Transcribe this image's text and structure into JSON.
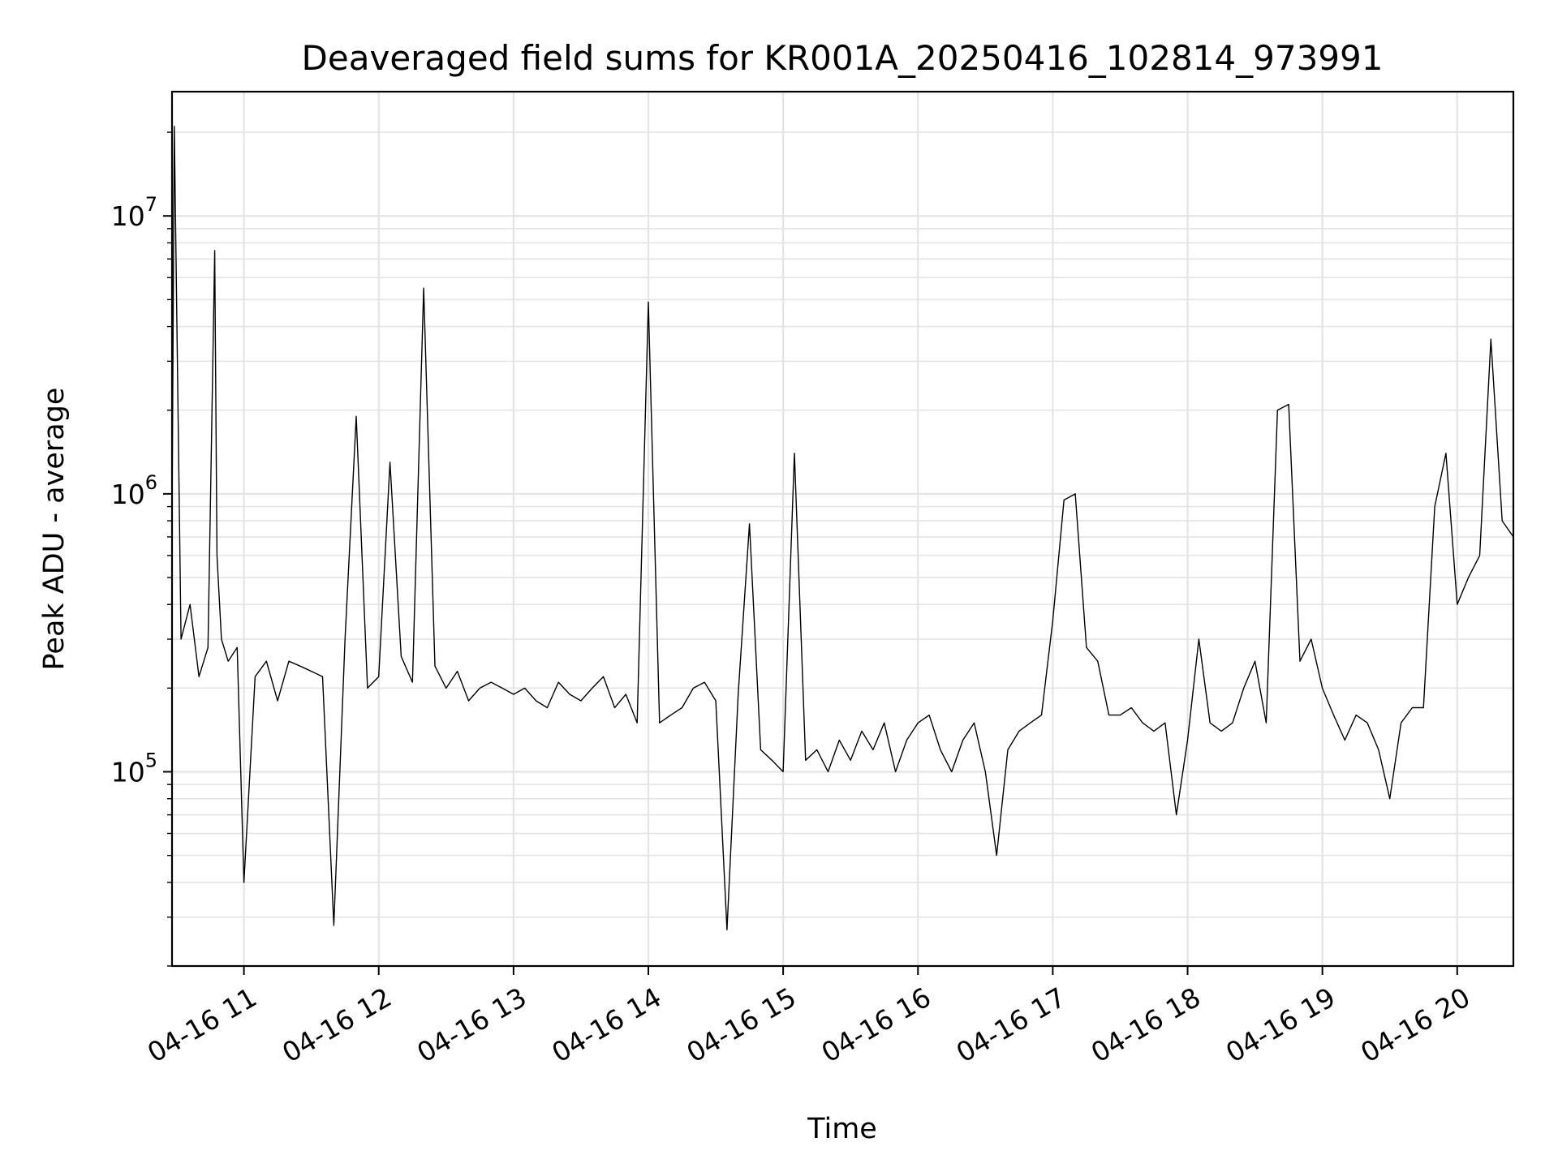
{
  "chart_data": {
    "type": "line",
    "title": "Deaveraged field sums for KR001A_20250416_102814_973991",
    "xlabel": "Time",
    "ylabel": "Peak ADU - average",
    "yscale": "log",
    "grid": "on",
    "legend": "none",
    "xlim": [
      "2025-04-16 10:28",
      "2025-04-16 20:25"
    ],
    "ylim": [
      20000,
      28000000
    ],
    "x_ticks": [
      {
        "t": "2025-04-16 11:00",
        "label": "04-16 11"
      },
      {
        "t": "2025-04-16 12:00",
        "label": "04-16 12"
      },
      {
        "t": "2025-04-16 13:00",
        "label": "04-16 13"
      },
      {
        "t": "2025-04-16 14:00",
        "label": "04-16 14"
      },
      {
        "t": "2025-04-16 15:00",
        "label": "04-16 15"
      },
      {
        "t": "2025-04-16 16:00",
        "label": "04-16 16"
      },
      {
        "t": "2025-04-16 17:00",
        "label": "04-16 17"
      },
      {
        "t": "2025-04-16 18:00",
        "label": "04-16 18"
      },
      {
        "t": "2025-04-16 19:00",
        "label": "04-16 19"
      },
      {
        "t": "2025-04-16 20:00",
        "label": "04-16 20"
      }
    ],
    "y_ticks": [
      {
        "v": 100000,
        "base": "10",
        "exp": "5"
      },
      {
        "v": 1000000,
        "base": "10",
        "exp": "6"
      },
      {
        "v": 10000000,
        "base": "10",
        "exp": "7"
      }
    ],
    "series": [
      {
        "color": "#000000",
        "x": [
          "2025-04-16 10:28",
          "2025-04-16 10:29",
          "2025-04-16 10:32",
          "2025-04-16 10:36",
          "2025-04-16 10:40",
          "2025-04-16 10:44",
          "2025-04-16 10:47",
          "2025-04-16 10:48",
          "2025-04-16 10:50",
          "2025-04-16 10:53",
          "2025-04-16 10:57",
          "2025-04-16 11:00",
          "2025-04-16 11:05",
          "2025-04-16 11:10",
          "2025-04-16 11:15",
          "2025-04-16 11:20",
          "2025-04-16 11:25",
          "2025-04-16 11:30",
          "2025-04-16 11:35",
          "2025-04-16 11:40",
          "2025-04-16 11:45",
          "2025-04-16 11:50",
          "2025-04-16 11:55",
          "2025-04-16 12:00",
          "2025-04-16 12:05",
          "2025-04-16 12:10",
          "2025-04-16 12:15",
          "2025-04-16 12:20",
          "2025-04-16 12:25",
          "2025-04-16 12:30",
          "2025-04-16 12:35",
          "2025-04-16 12:40",
          "2025-04-16 12:45",
          "2025-04-16 12:50",
          "2025-04-16 12:55",
          "2025-04-16 13:00",
          "2025-04-16 13:05",
          "2025-04-16 13:10",
          "2025-04-16 13:15",
          "2025-04-16 13:20",
          "2025-04-16 13:25",
          "2025-04-16 13:30",
          "2025-04-16 13:35",
          "2025-04-16 13:40",
          "2025-04-16 13:45",
          "2025-04-16 13:50",
          "2025-04-16 13:55",
          "2025-04-16 14:00",
          "2025-04-16 14:05",
          "2025-04-16 14:10",
          "2025-04-16 14:15",
          "2025-04-16 14:20",
          "2025-04-16 14:25",
          "2025-04-16 14:30",
          "2025-04-16 14:35",
          "2025-04-16 14:40",
          "2025-04-16 14:45",
          "2025-04-16 14:50",
          "2025-04-16 14:55",
          "2025-04-16 15:00",
          "2025-04-16 15:05",
          "2025-04-16 15:10",
          "2025-04-16 15:15",
          "2025-04-16 15:20",
          "2025-04-16 15:25",
          "2025-04-16 15:30",
          "2025-04-16 15:35",
          "2025-04-16 15:40",
          "2025-04-16 15:45",
          "2025-04-16 15:50",
          "2025-04-16 15:55",
          "2025-04-16 16:00",
          "2025-04-16 16:05",
          "2025-04-16 16:10",
          "2025-04-16 16:15",
          "2025-04-16 16:20",
          "2025-04-16 16:25",
          "2025-04-16 16:30",
          "2025-04-16 16:35",
          "2025-04-16 16:40",
          "2025-04-16 16:45",
          "2025-04-16 16:50",
          "2025-04-16 16:55",
          "2025-04-16 17:00",
          "2025-04-16 17:05",
          "2025-04-16 17:10",
          "2025-04-16 17:15",
          "2025-04-16 17:20",
          "2025-04-16 17:25",
          "2025-04-16 17:30",
          "2025-04-16 17:35",
          "2025-04-16 17:40",
          "2025-04-16 17:45",
          "2025-04-16 17:50",
          "2025-04-16 17:55",
          "2025-04-16 18:00",
          "2025-04-16 18:05",
          "2025-04-16 18:10",
          "2025-04-16 18:15",
          "2025-04-16 18:20",
          "2025-04-16 18:25",
          "2025-04-16 18:30",
          "2025-04-16 18:35",
          "2025-04-16 18:40",
          "2025-04-16 18:45",
          "2025-04-16 18:50",
          "2025-04-16 18:55",
          "2025-04-16 19:00",
          "2025-04-16 19:05",
          "2025-04-16 19:10",
          "2025-04-16 19:15",
          "2025-04-16 19:20",
          "2025-04-16 19:25",
          "2025-04-16 19:30",
          "2025-04-16 19:35",
          "2025-04-16 19:40",
          "2025-04-16 19:45",
          "2025-04-16 19:50",
          "2025-04-16 19:55",
          "2025-04-16 20:00",
          "2025-04-16 20:05",
          "2025-04-16 20:10",
          "2025-04-16 20:15",
          "2025-04-16 20:20",
          "2025-04-16 20:25"
        ],
        "y": [
          800000,
          21000000,
          300000,
          400000,
          220000,
          280000,
          7500000,
          600000,
          300000,
          250000,
          280000,
          40000,
          220000,
          250000,
          180000,
          250000,
          240000,
          230000,
          220000,
          28000,
          300000,
          1900000,
          200000,
          220000,
          1300000,
          260000,
          210000,
          5500000,
          240000,
          200000,
          230000,
          180000,
          200000,
          210000,
          200000,
          190000,
          200000,
          180000,
          170000,
          210000,
          190000,
          180000,
          200000,
          220000,
          170000,
          190000,
          150000,
          4900000,
          150000,
          160000,
          170000,
          200000,
          210000,
          180000,
          27000,
          190000,
          780000,
          120000,
          110000,
          100000,
          1400000,
          110000,
          120000,
          100000,
          130000,
          110000,
          140000,
          120000,
          150000,
          100000,
          130000,
          150000,
          160000,
          120000,
          100000,
          130000,
          150000,
          100000,
          50000,
          120000,
          140000,
          150000,
          160000,
          350000,
          950000,
          1000000,
          280000,
          250000,
          160000,
          160000,
          170000,
          150000,
          140000,
          150000,
          70000,
          130000,
          300000,
          150000,
          140000,
          150000,
          200000,
          250000,
          150000,
          2000000,
          2100000,
          250000,
          300000,
          200000,
          160000,
          130000,
          160000,
          150000,
          120000,
          80000,
          150000,
          170000,
          170000,
          900000,
          1400000,
          400000,
          500000,
          600000,
          3600000,
          800000,
          700000
        ]
      }
    ]
  }
}
